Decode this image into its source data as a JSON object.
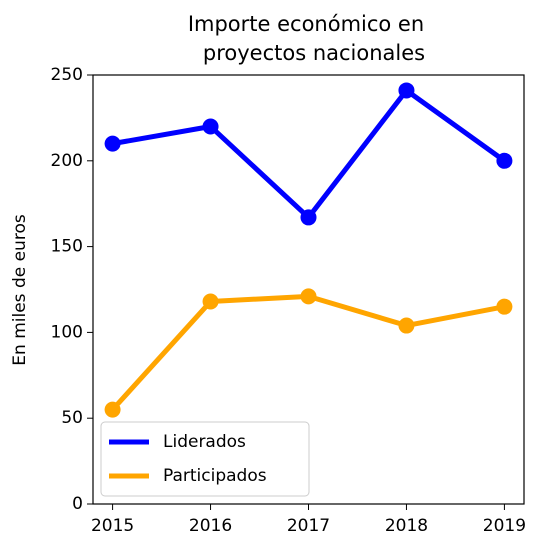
{
  "chart_data": {
    "type": "line",
    "title": [
      "Importe económico en",
      "proyectos nacionales"
    ],
    "ylabel": "En miles de euros",
    "x": [
      2015,
      2016,
      2017,
      2018,
      2019
    ],
    "xlim": [
      2014.8,
      2019.2
    ],
    "xticks": [
      2015,
      2016,
      2017,
      2018,
      2019
    ],
    "ylim": [
      0,
      250
    ],
    "yticks": [
      0,
      50,
      100,
      150,
      200,
      250
    ],
    "grid": false,
    "legend": "lower left",
    "series": [
      {
        "name": "Liderados",
        "color": "#0000ff",
        "values": [
          210,
          220,
          167,
          241,
          200
        ]
      },
      {
        "name": "Participados",
        "color": "#ffa500",
        "values": [
          55,
          118,
          121,
          104,
          115
        ]
      }
    ]
  }
}
